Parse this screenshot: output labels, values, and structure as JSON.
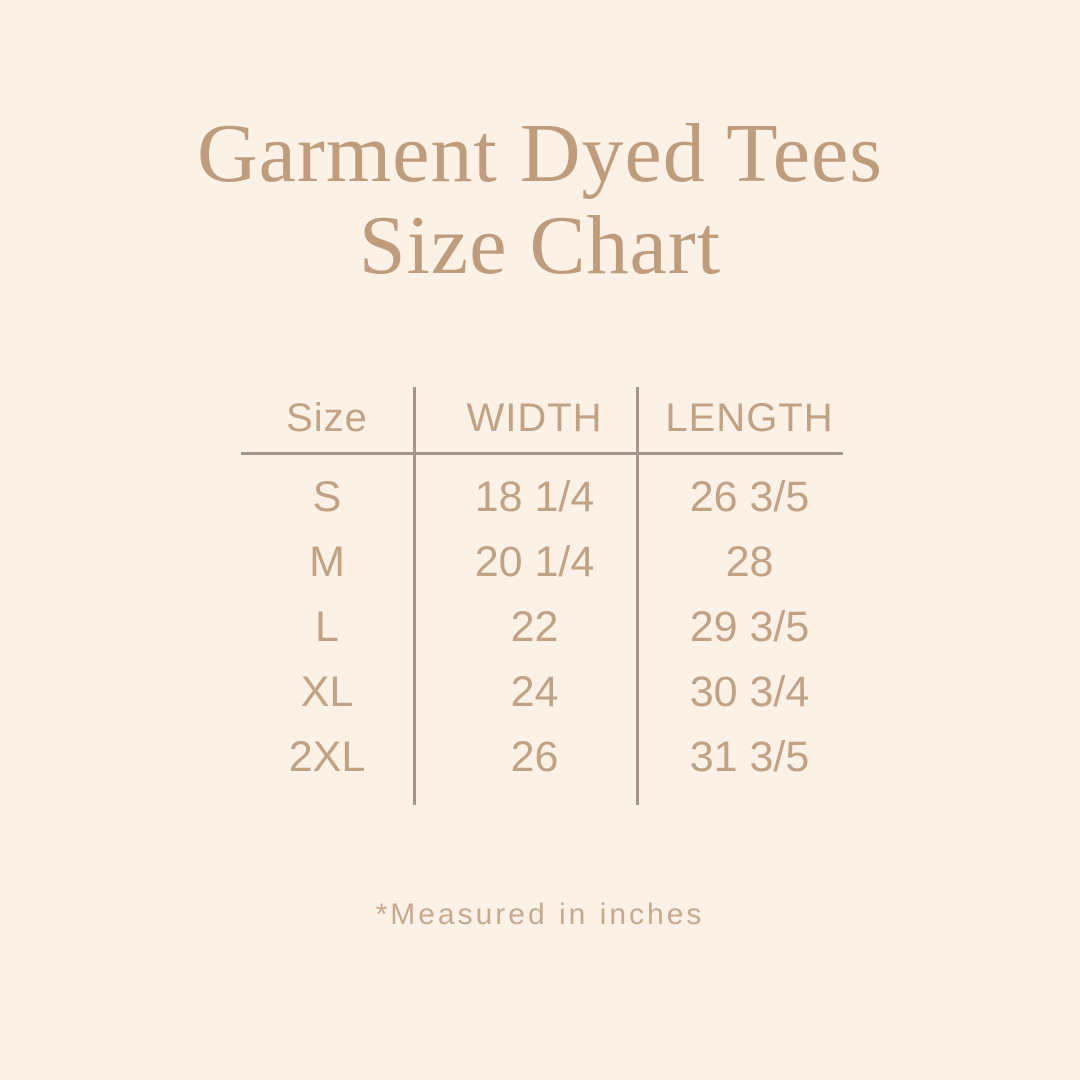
{
  "title": {
    "line1": "Garment Dyed Tees",
    "line2": "Size Chart"
  },
  "table": {
    "headers": {
      "size": "Size",
      "width": "WIDTH",
      "length": "LENGTH"
    },
    "rows": [
      {
        "size": "S",
        "width": "18 1/4",
        "length": "26 3/5"
      },
      {
        "size": "M",
        "width": "20 1/4",
        "length": "28"
      },
      {
        "size": "L",
        "width": "22",
        "length": "29 3/5"
      },
      {
        "size": "XL",
        "width": "24",
        "length": "30 3/4"
      },
      {
        "size": "2XL",
        "width": "26",
        "length": "31 3/5"
      }
    ]
  },
  "footnote": "*Measured in inches",
  "colors": {
    "background": "#fcf1e6",
    "title_text": "#bf9c7c",
    "table_text": "#c2a284",
    "table_lines": "#a5948a",
    "footnote_text": "#c6aa8e"
  },
  "chart_data": {
    "type": "table",
    "title": "Garment Dyed Tees Size Chart",
    "columns": [
      "Size",
      "WIDTH",
      "LENGTH"
    ],
    "rows": [
      [
        "S",
        "18 1/4",
        "26 3/5"
      ],
      [
        "M",
        "20 1/4",
        "28"
      ],
      [
        "L",
        "22",
        "29 3/5"
      ],
      [
        "XL",
        "24",
        "30 3/4"
      ],
      [
        "2XL",
        "26",
        "31 3/5"
      ]
    ],
    "units": "inches",
    "note": "*Measured in inches"
  }
}
